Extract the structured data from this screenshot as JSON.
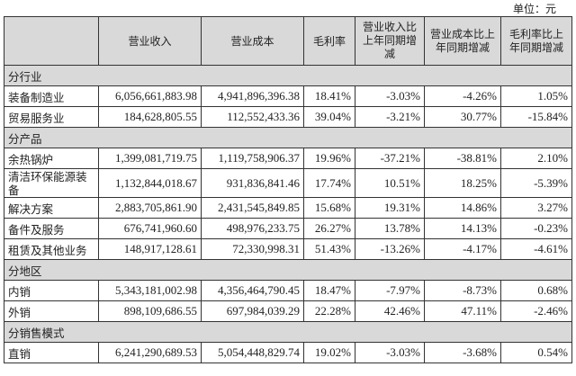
{
  "unit": "单位：元",
  "headers": [
    "",
    "营业收入",
    "营业成本",
    "毛利率",
    "营业收入比上年同期增减",
    "营业成本比上年同期增减",
    "毛利率比上年同期增减"
  ],
  "sections": [
    {
      "title": "分行业",
      "rows": [
        [
          "装备制造业",
          "6,056,661,883.98",
          "4,941,896,396.38",
          "18.41%",
          "-3.03%",
          "-4.26%",
          "1.05%"
        ],
        [
          "贸易服务业",
          "184,628,805.55",
          "112,552,433.36",
          "39.04%",
          "-3.21%",
          "30.77%",
          "-15.84%"
        ]
      ]
    },
    {
      "title": "分产品",
      "rows": [
        [
          "余热锅炉",
          "1,399,081,719.75",
          "1,119,758,906.37",
          "19.96%",
          "-37.21%",
          "-38.81%",
          "2.10%"
        ],
        [
          "清洁环保能源装备",
          "1,132,844,018.67",
          "931,836,841.46",
          "17.74%",
          "10.51%",
          "18.25%",
          "-5.39%"
        ],
        [
          "解决方案",
          "2,883,705,861.90",
          "2,431,545,849.85",
          "15.68%",
          "19.31%",
          "14.86%",
          "3.27%"
        ],
        [
          "备件及服务",
          "676,741,960.60",
          "498,976,233.75",
          "26.27%",
          "13.78%",
          "14.13%",
          "-0.23%"
        ],
        [
          "租赁及其他业务",
          "148,917,128.61",
          "72,330,998.31",
          "51.43%",
          "-13.26%",
          "-4.17%",
          "-4.61%"
        ]
      ]
    },
    {
      "title": "分地区",
      "rows": [
        [
          "内销",
          "5,343,181,002.98",
          "4,356,464,790.45",
          "18.47%",
          "-7.97%",
          "-8.73%",
          "0.68%"
        ],
        [
          "外销",
          "898,109,686.55",
          "697,984,039.29",
          "22.28%",
          "42.46%",
          "47.11%",
          "-2.46%"
        ]
      ]
    },
    {
      "title": "分销售模式",
      "rows": [
        [
          "直销",
          "6,241,290,689.53",
          "5,054,448,829.74",
          "19.02%",
          "-3.03%",
          "-3.68%",
          "0.54%"
        ]
      ]
    }
  ]
}
